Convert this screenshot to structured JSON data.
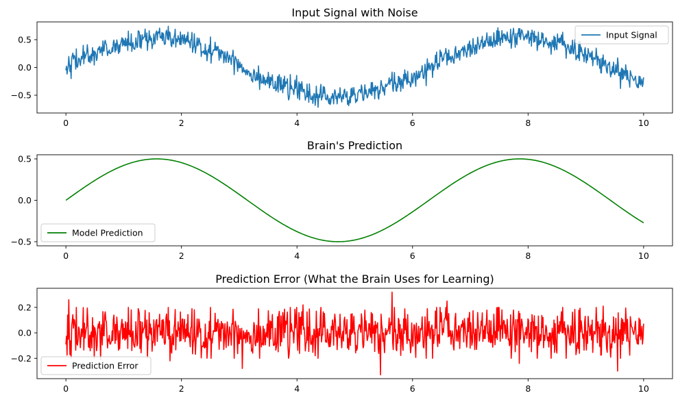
{
  "chart_data": [
    {
      "type": "line",
      "title": "Input Signal with Noise",
      "xlabel": "",
      "ylabel": "",
      "xlim": [
        -0.5,
        10.5
      ],
      "ylim": [
        -0.82,
        0.82
      ],
      "xticks": [
        0,
        2,
        4,
        6,
        8,
        10
      ],
      "yticks": [
        -0.5,
        0.0,
        0.5
      ],
      "xtick_labels": [
        "0",
        "2",
        "4",
        "6",
        "8",
        "10"
      ],
      "ytick_labels": [
        "−0.5",
        "0.0",
        "0.5"
      ],
      "legend_position": "top-right",
      "grid": false,
      "series": [
        {
          "name": "Input Signal",
          "color": "#1f77b4",
          "x_start": 0,
          "x_end": 10,
          "noise_amplitude": 0.1,
          "x": [
            0.0,
            0.1,
            0.2,
            0.3,
            0.4,
            0.5,
            0.6,
            0.7,
            0.8,
            0.9,
            1.0,
            1.1,
            1.2,
            1.3,
            1.4,
            1.5,
            1.6,
            1.7,
            1.8,
            1.9,
            2.0,
            2.1,
            2.2,
            2.3,
            2.4,
            2.5,
            2.6,
            2.7,
            2.8,
            2.9,
            3.0,
            3.1,
            3.2,
            3.3,
            3.4,
            3.5,
            3.6,
            3.7,
            3.8,
            3.9,
            4.0,
            4.1,
            4.2,
            4.3,
            4.4,
            4.5,
            4.6,
            4.7,
            4.8,
            4.9,
            5.0,
            5.1,
            5.2,
            5.3,
            5.4,
            5.5,
            5.6,
            5.7,
            5.8,
            5.9,
            6.0,
            6.1,
            6.2,
            6.3,
            6.4,
            6.5,
            6.6,
            6.7,
            6.8,
            6.9,
            7.0,
            7.1,
            7.2,
            7.3,
            7.4,
            7.5,
            7.6,
            7.7,
            7.8,
            7.9,
            8.0,
            8.1,
            8.2,
            8.3,
            8.4,
            8.5,
            8.6,
            8.7,
            8.8,
            8.9,
            9.0,
            9.1,
            9.2,
            9.3,
            9.4,
            9.5,
            9.6,
            9.7,
            9.8,
            9.9,
            10.0
          ],
          "y": [
            0.04,
            0.12,
            0.1,
            0.2,
            0.22,
            0.25,
            0.3,
            0.33,
            0.34,
            0.38,
            0.45,
            0.42,
            0.44,
            0.5,
            0.52,
            0.48,
            0.58,
            0.5,
            0.55,
            0.5,
            0.47,
            0.5,
            0.43,
            0.42,
            0.36,
            0.3,
            0.3,
            0.22,
            0.2,
            0.12,
            0.08,
            -0.05,
            -0.08,
            -0.15,
            -0.18,
            -0.26,
            -0.28,
            -0.3,
            -0.35,
            -0.4,
            -0.42,
            -0.42,
            -0.48,
            -0.5,
            -0.52,
            -0.5,
            -0.58,
            -0.52,
            -0.5,
            -0.56,
            -0.48,
            -0.46,
            -0.5,
            -0.42,
            -0.42,
            -0.35,
            -0.3,
            -0.3,
            -0.25,
            -0.22,
            -0.18,
            -0.12,
            -0.08,
            0.0,
            0.05,
            0.12,
            0.15,
            0.2,
            0.25,
            0.28,
            0.32,
            0.38,
            0.4,
            0.45,
            0.48,
            0.45,
            0.52,
            0.55,
            0.5,
            0.58,
            0.55,
            0.52,
            0.5,
            0.48,
            0.45,
            0.48,
            0.4,
            0.35,
            0.32,
            0.28,
            0.22,
            0.2,
            0.12,
            0.05,
            0.05,
            -0.05,
            -0.12,
            -0.15,
            -0.2,
            -0.28,
            -0.25
          ]
        }
      ]
    },
    {
      "type": "line",
      "title": "Brain's Prediction",
      "xlabel": "",
      "ylabel": "",
      "xlim": [
        -0.5,
        10.5
      ],
      "ylim": [
        -0.55,
        0.55
      ],
      "xticks": [
        0,
        2,
        4,
        6,
        8,
        10
      ],
      "yticks": [
        -0.5,
        0.0,
        0.5
      ],
      "xtick_labels": [
        "0",
        "2",
        "4",
        "6",
        "8",
        "10"
      ],
      "ytick_labels": [
        "−0.5",
        "0.0",
        "0.5"
      ],
      "legend_position": "bottom-left",
      "grid": false,
      "series": [
        {
          "name": "Model Prediction",
          "color": "#008000",
          "x": [
            0.0,
            0.5,
            1.0,
            1.5708,
            2.0,
            2.5,
            3.0,
            3.5,
            4.0,
            4.7124,
            5.0,
            5.5,
            6.0,
            6.5,
            7.0,
            7.854,
            8.5,
            9.0,
            9.5,
            10.0
          ],
          "y": [
            0.0,
            0.24,
            0.421,
            0.5,
            0.455,
            0.299,
            0.071,
            -0.175,
            -0.378,
            -0.5,
            -0.479,
            -0.353,
            -0.14,
            0.108,
            0.328,
            0.5,
            0.399,
            0.206,
            -0.038,
            -0.272
          ]
        }
      ]
    },
    {
      "type": "line",
      "title": "Prediction Error (What the Brain Uses for Learning)",
      "xlabel": "",
      "ylabel": "",
      "xlim": [
        -0.5,
        10.5
      ],
      "ylim": [
        -0.36,
        0.35
      ],
      "xticks": [
        0,
        2,
        4,
        6,
        8,
        10
      ],
      "yticks": [
        -0.2,
        0.0,
        0.2
      ],
      "xtick_labels": [
        "0",
        "2",
        "4",
        "6",
        "8",
        "10"
      ],
      "ytick_labels": [
        "−0.2",
        "0.0",
        "0.2"
      ],
      "legend_position": "bottom-left",
      "grid": false,
      "series": [
        {
          "name": "Prediction Error",
          "color": "#ff0000",
          "x_start": 0,
          "x_end": 10,
          "noise_amplitude": 0.1,
          "x": [
            0.03,
            0.05,
            0.6,
            1.8,
            3.05,
            3.75,
            4.1,
            5.45,
            5.65,
            6.6,
            7.85,
            9.3,
            9.55
          ],
          "y": [
            0.14,
            0.26,
            -0.21,
            -0.22,
            -0.28,
            0.16,
            0.22,
            -0.33,
            0.32,
            0.25,
            -0.24,
            0.21,
            -0.3
          ]
        }
      ]
    }
  ]
}
